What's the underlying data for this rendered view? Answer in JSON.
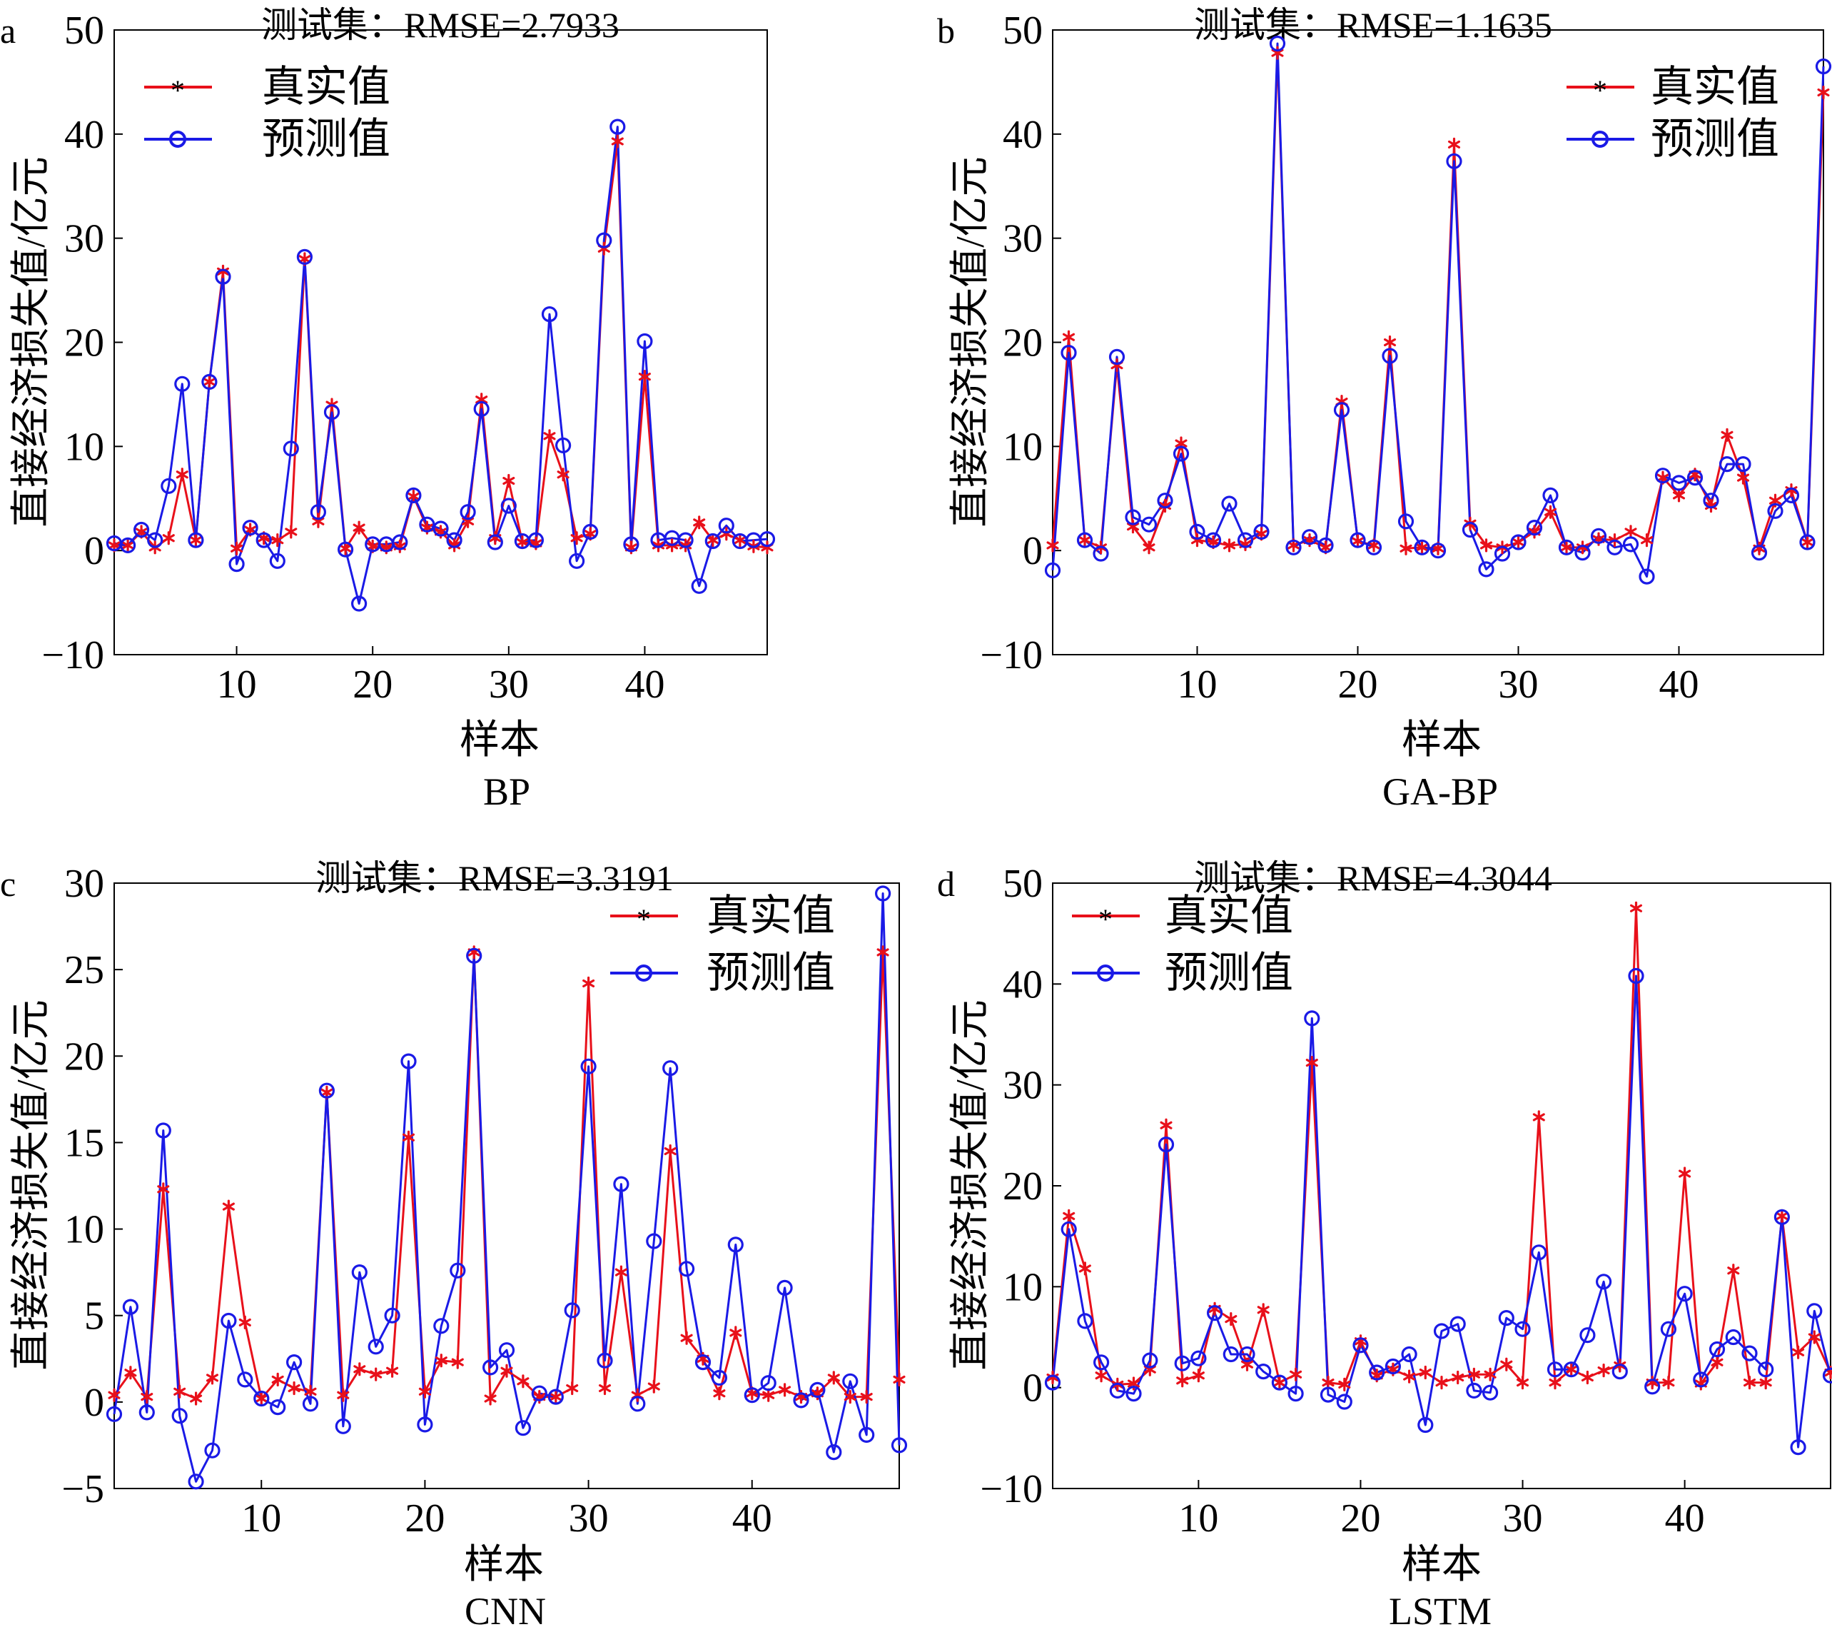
{
  "figure": {
    "panels": [
      {
        "letter": "a",
        "title": "测试集：RMSE=2.7933",
        "xlabel": "样本",
        "ylabel": "直接经济损失值/亿元",
        "caption": "BP"
      },
      {
        "letter": "b",
        "title": "测试集：RMSE=1.1635",
        "xlabel": "样本",
        "ylabel": "直接经济损失值/亿元",
        "caption": "GA-BP"
      },
      {
        "letter": "c",
        "title": "测试集：RMSE=3.3191",
        "xlabel": "样本",
        "ylabel": "直接经济损失值/亿元",
        "caption": "CNN"
      },
      {
        "letter": "d",
        "title": "测试集：RMSE=4.3044",
        "xlabel": "样本",
        "ylabel": "直接经济损失值/亿元",
        "caption": "LSTM"
      }
    ]
  },
  "colors": {
    "actual": "#e8101a",
    "predicted": "#1a1ae6",
    "axis": "#000000"
  },
  "icons": {
    "actual_marker": "asterisk-marker",
    "predicted_marker": "circle-marker"
  },
  "chart_data": [
    {
      "type": "line",
      "title": "测试集：RMSE=2.7933",
      "xlabel": "样本",
      "ylabel": "直接经济损失值/亿元",
      "xlim": [
        1,
        49
      ],
      "ylim": [
        -10,
        50
      ],
      "xticks": [
        10,
        20,
        30,
        40
      ],
      "yticks": [
        -10,
        0,
        10,
        20,
        30,
        40,
        50
      ],
      "legend_position": "top-left",
      "series": [
        {
          "name": "真实值",
          "marker": "asterisk",
          "values": [
            0.5,
            0.5,
            1.8,
            0.3,
            1.2,
            7.3,
            1.0,
            16.2,
            26.8,
            0.2,
            2.0,
            1.2,
            1.0,
            1.8,
            28.0,
            2.8,
            14.0,
            0.2,
            2.2,
            0.4,
            0.3,
            0.4,
            5.2,
            2.2,
            1.8,
            0.5,
            2.8,
            14.5,
            1.2,
            6.7,
            0.8,
            0.7,
            11.0,
            7.3,
            1.2,
            1.6,
            29.0,
            39.3,
            0.3,
            16.7,
            0.5,
            0.5,
            0.5,
            2.7,
            1.0,
            1.6,
            1.0,
            0.4,
            0.3
          ]
        },
        {
          "name": "预测值",
          "marker": "circle",
          "values": [
            0.7,
            0.5,
            2.0,
            1.0,
            6.2,
            16.0,
            1.0,
            16.2,
            26.3,
            -1.3,
            2.2,
            1.0,
            -1.0,
            9.8,
            28.2,
            3.7,
            13.3,
            0.1,
            -5.1,
            0.6,
            0.6,
            0.8,
            5.3,
            2.5,
            2.1,
            1.0,
            3.7,
            13.6,
            0.8,
            4.3,
            0.9,
            1.0,
            22.7,
            10.1,
            -1.0,
            1.8,
            29.8,
            40.7,
            0.6,
            20.1,
            1.0,
            1.2,
            1.0,
            -3.4,
            0.9,
            2.4,
            0.9,
            1.0,
            1.1
          ]
        }
      ]
    },
    {
      "type": "line",
      "title": "测试集：RMSE=1.1635",
      "xlabel": "样本",
      "ylabel": "直接经济损失值/亿元",
      "xlim": [
        1,
        49
      ],
      "ylim": [
        -10,
        50
      ],
      "xticks": [
        10,
        20,
        30,
        40
      ],
      "yticks": [
        -10,
        0,
        10,
        20,
        30,
        40,
        50
      ],
      "legend_position": "top-right",
      "series": [
        {
          "name": "真实值",
          "marker": "asterisk",
          "values": [
            0.5,
            20.5,
            1.0,
            0.3,
            17.8,
            2.3,
            0.3,
            4.3,
            10.3,
            1.0,
            0.8,
            0.5,
            0.6,
            1.6,
            47.8,
            0.5,
            1.0,
            0.3,
            14.3,
            0.9,
            0.5,
            20.0,
            0.2,
            0.3,
            0.2,
            39.0,
            2.6,
            0.5,
            0.3,
            0.8,
            1.8,
            3.7,
            0.3,
            0.3,
            1.1,
            1.0,
            1.8,
            1.0,
            7.0,
            5.3,
            7.3,
            4.3,
            11.1,
            7.0,
            0.2,
            4.8,
            5.8,
            0.8,
            44.0
          ]
        },
        {
          "name": "预测值",
          "marker": "circle",
          "values": [
            -1.9,
            19.0,
            1.0,
            -0.3,
            18.6,
            3.2,
            2.5,
            4.8,
            9.3,
            1.8,
            1.0,
            4.5,
            1.0,
            1.8,
            48.7,
            0.3,
            1.3,
            0.5,
            13.5,
            1.0,
            0.3,
            18.7,
            2.8,
            0.3,
            0.0,
            37.4,
            2.0,
            -1.8,
            -0.3,
            0.8,
            2.2,
            5.3,
            0.3,
            -0.2,
            1.4,
            0.3,
            0.6,
            -2.5,
            7.2,
            6.5,
            7.0,
            4.8,
            8.3,
            8.3,
            -0.2,
            3.8,
            5.3,
            0.8,
            46.5
          ]
        }
      ]
    },
    {
      "type": "line",
      "title": "测试集：RMSE=3.3191",
      "xlabel": "样本",
      "ylabel": "直接经济损失值/亿元",
      "xlim": [
        1,
        49
      ],
      "ylim": [
        -5,
        30
      ],
      "xticks": [
        10,
        20,
        30,
        40
      ],
      "yticks": [
        -5,
        0,
        5,
        10,
        15,
        20,
        25,
        30
      ],
      "legend_position": "top-right",
      "series": [
        {
          "name": "真实值",
          "marker": "asterisk",
          "values": [
            0.4,
            1.7,
            0.3,
            12.3,
            0.6,
            0.2,
            1.4,
            11.3,
            4.6,
            0.2,
            1.3,
            0.8,
            0.6,
            17.9,
            0.4,
            1.9,
            1.6,
            1.8,
            15.3,
            0.6,
            2.4,
            2.3,
            26.0,
            0.2,
            1.8,
            1.2,
            0.3,
            0.3,
            0.8,
            24.2,
            0.8,
            7.5,
            0.4,
            0.9,
            14.5,
            3.7,
            2.5,
            0.5,
            4.0,
            0.5,
            0.4,
            0.7,
            0.3,
            0.5,
            1.4,
            0.3,
            0.3,
            26.0,
            1.3
          ]
        },
        {
          "name": "预测值",
          "marker": "circle",
          "values": [
            -0.7,
            5.5,
            -0.6,
            15.7,
            -0.8,
            -4.6,
            -2.8,
            4.7,
            1.3,
            0.2,
            -0.3,
            2.3,
            -0.1,
            18.0,
            -1.4,
            7.5,
            3.2,
            5.0,
            19.7,
            -1.3,
            4.4,
            7.6,
            25.8,
            2.0,
            3.0,
            -1.5,
            0.5,
            0.3,
            5.3,
            19.4,
            2.4,
            12.6,
            -0.1,
            9.3,
            19.3,
            7.7,
            2.3,
            1.4,
            9.1,
            0.4,
            1.1,
            6.6,
            0.1,
            0.7,
            -2.9,
            1.2,
            -1.9,
            29.4,
            -2.5
          ]
        }
      ]
    },
    {
      "type": "line",
      "title": "测试集：RMSE=4.3044",
      "xlabel": "样本",
      "ylabel": "直接经济损失值/亿元",
      "xlim": [
        1,
        49
      ],
      "ylim": [
        -10,
        50
      ],
      "xticks": [
        10,
        20,
        30,
        40
      ],
      "yticks": [
        -10,
        0,
        10,
        20,
        30,
        40,
        50
      ],
      "legend_position": "top-left",
      "series": [
        {
          "name": "真实值",
          "marker": "asterisk",
          "values": [
            1.0,
            17.0,
            11.8,
            1.2,
            0.3,
            0.4,
            1.8,
            26.0,
            0.7,
            1.2,
            7.8,
            6.8,
            2.3,
            7.7,
            0.5,
            1.3,
            32.2,
            0.5,
            0.3,
            4.6,
            1.2,
            1.8,
            1.1,
            1.5,
            0.5,
            1.0,
            1.3,
            1.3,
            2.3,
            0.5,
            26.8,
            0.5,
            1.8,
            1.0,
            1.7,
            2.2,
            47.5,
            0.5,
            0.5,
            21.2,
            0.4,
            2.5,
            11.6,
            0.5,
            0.5,
            17.0,
            3.5,
            5.0,
            1.5
          ]
        },
        {
          "name": "预测值",
          "marker": "circle",
          "values": [
            0.5,
            15.7,
            6.6,
            2.5,
            -0.3,
            -0.6,
            2.7,
            24.1,
            2.4,
            2.9,
            7.4,
            3.3,
            3.3,
            1.6,
            0.5,
            -0.6,
            36.6,
            -0.7,
            -1.4,
            4.2,
            1.5,
            2.1,
            3.3,
            -3.7,
            5.6,
            6.3,
            -0.3,
            -0.5,
            6.9,
            5.8,
            13.4,
            1.8,
            1.8,
            5.2,
            10.5,
            1.6,
            40.8,
            0.1,
            5.8,
            9.3,
            0.8,
            3.8,
            5.0,
            3.4,
            1.8,
            16.9,
            -5.9,
            7.6,
            1.2
          ]
        }
      ]
    }
  ]
}
